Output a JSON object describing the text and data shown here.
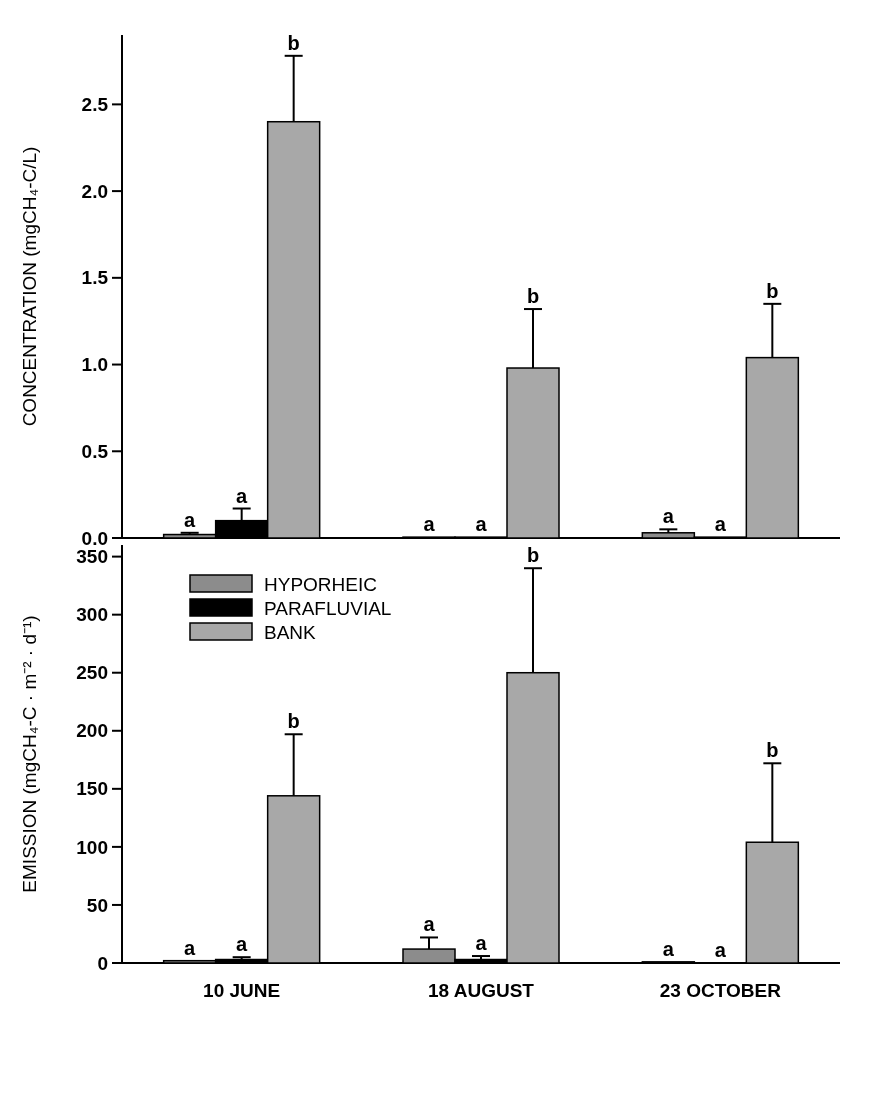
{
  "chart_data": [
    {
      "type": "bar",
      "ylabel": "CONCENTRATION (mgCH₄-C/L)",
      "ylim": [
        0,
        2.9
      ],
      "yticks": [
        {
          "value": 0,
          "label": "0.0"
        },
        {
          "value": 0.5,
          "label": "0.5"
        },
        {
          "value": 1,
          "label": "1.0"
        },
        {
          "value": 1.5,
          "label": "1.5"
        },
        {
          "value": 2,
          "label": "2.0"
        },
        {
          "value": 2.5,
          "label": "2.5"
        }
      ],
      "tick_labels": "y",
      "legend": false,
      "series": [
        {
          "color": "#8c8c8c",
          "values": [
            0.02,
            0.005,
            0.03
          ],
          "errors": [
            0.01,
            null,
            0.02
          ]
        },
        {
          "color": "#000000",
          "values": [
            0.1,
            0.005,
            0.005
          ],
          "errors": [
            0.07,
            null,
            null
          ]
        },
        {
          "color": "#a8a8a8",
          "values": [
            2.4,
            0.98,
            1.04
          ],
          "errors": [
            0.38,
            0.34,
            0.31
          ]
        }
      ],
      "annotations": [
        "a",
        "a",
        "b",
        "a",
        "a",
        "b",
        "a",
        "a",
        "b"
      ]
    },
    {
      "type": "bar",
      "ylabel": "EMISSION (mgCH₄-C · m⁻² · d⁻¹)",
      "categories": [
        "10 JUNE",
        "18 AUGUST",
        "23 OCTOBER"
      ],
      "ylim": [
        0,
        360
      ],
      "yticks": [
        0,
        50,
        100,
        150,
        200,
        250,
        300,
        350
      ],
      "legend": "top left",
      "series": [
        {
          "name": "HYPORHEIC",
          "color": "#8c8c8c",
          "values": [
            2,
            12,
            1
          ],
          "errors": [
            null,
            10,
            null
          ]
        },
        {
          "name": "PARAFLUVIAL",
          "color": "#000000",
          "values": [
            3,
            3,
            0
          ],
          "errors": [
            2,
            3,
            null
          ]
        },
        {
          "name": "BANK",
          "color": "#a8a8a8",
          "values": [
            144,
            250,
            104
          ],
          "errors": [
            53,
            90,
            68
          ]
        }
      ],
      "annotations": [
        "a",
        "a",
        "b",
        "a",
        "a",
        "b",
        "a",
        "a",
        "b"
      ]
    }
  ]
}
